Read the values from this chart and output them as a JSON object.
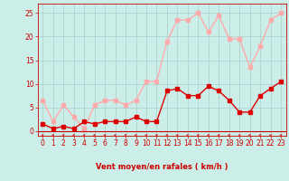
{
  "x": [
    0,
    1,
    2,
    3,
    4,
    5,
    6,
    7,
    8,
    9,
    10,
    11,
    12,
    13,
    14,
    15,
    16,
    17,
    18,
    19,
    20,
    21,
    22,
    23
  ],
  "wind_avg": [
    1.5,
    0.5,
    1.0,
    0.5,
    2.0,
    1.5,
    2.0,
    2.0,
    2.0,
    3.0,
    2.0,
    2.0,
    8.5,
    9.0,
    7.5,
    7.5,
    9.5,
    8.5,
    6.5,
    4.0,
    4.0,
    7.5,
    9.0,
    10.5
  ],
  "wind_gust": [
    6.5,
    2.0,
    5.5,
    3.0,
    0.5,
    5.5,
    6.5,
    6.5,
    5.5,
    6.5,
    10.5,
    10.5,
    19.0,
    23.5,
    23.5,
    25.0,
    21.0,
    24.5,
    19.5,
    19.5,
    13.5,
    18.0,
    23.5,
    25.0
  ],
  "avg_color": "#dd0000",
  "gust_color": "#ffaaaa",
  "bg_color": "#cceee8",
  "grid_color": "#aacccc",
  "axis_color": "#cc0000",
  "xlabel": "Vent moyen/en rafales ( km/h )",
  "ylim": [
    -1,
    27
  ],
  "yticks": [
    0,
    5,
    10,
    15,
    20,
    25
  ],
  "xticks": [
    0,
    1,
    2,
    3,
    4,
    5,
    6,
    7,
    8,
    9,
    10,
    11,
    12,
    13,
    14,
    15,
    16,
    17,
    18,
    19,
    20,
    21,
    22,
    23
  ],
  "marker_size": 2.5,
  "line_width": 1.0,
  "tick_fontsize": 5.5,
  "xlabel_fontsize": 6.0
}
